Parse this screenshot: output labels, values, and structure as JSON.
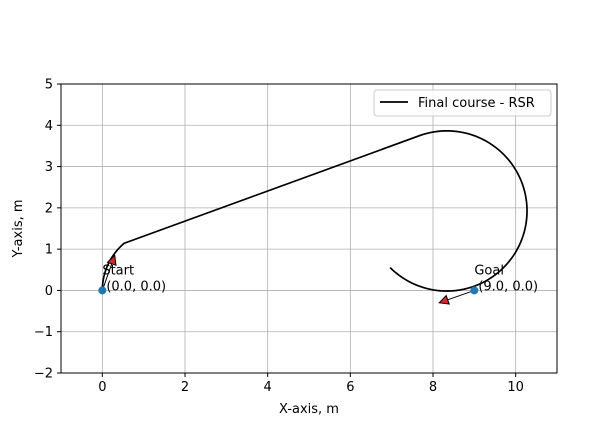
{
  "chart_data": {
    "type": "line",
    "xlabel": "X-axis, m",
    "ylabel": "Y-axis, m",
    "xlim": [
      -1,
      11
    ],
    "ylim": [
      -2,
      5
    ],
    "xticks": [
      0,
      2,
      4,
      6,
      8,
      10
    ],
    "yticks": [
      -2,
      -1,
      0,
      1,
      2,
      3,
      4,
      5
    ],
    "grid": true,
    "legend_position": "top-right",
    "series": [
      {
        "name": "Final course - RSR",
        "color": "#000000",
        "segments": [
          {
            "kind": "arc",
            "center": [
              1.5,
              0.0
            ],
            "radius": 1.5,
            "from_deg": 180,
            "to_deg": 130.5,
            "clockwise": true
          },
          {
            "kind": "line",
            "from": [
              0.526,
              1.141
            ],
            "to": [
              7.67,
              3.747
            ]
          },
          {
            "kind": "arc",
            "center": [
              8.335,
              1.925
            ],
            "radius": 1.94,
            "from_deg": 110,
            "to_deg": -135,
            "clockwise": true
          }
        ]
      }
    ],
    "points": [
      {
        "x": 0.0,
        "y": 0.0,
        "label": "Start",
        "coords": "(0.0, 0.0)",
        "color": "#1f77b4",
        "arrow_to": [
          0.3,
          0.85
        ]
      },
      {
        "x": 9.0,
        "y": 0.0,
        "label": "Goal",
        "coords": "(9.0, 0.0)",
        "color": "#1f77b4",
        "arrow_to": [
          8.15,
          -0.3
        ]
      }
    ],
    "arrow_color": "#d62728"
  }
}
